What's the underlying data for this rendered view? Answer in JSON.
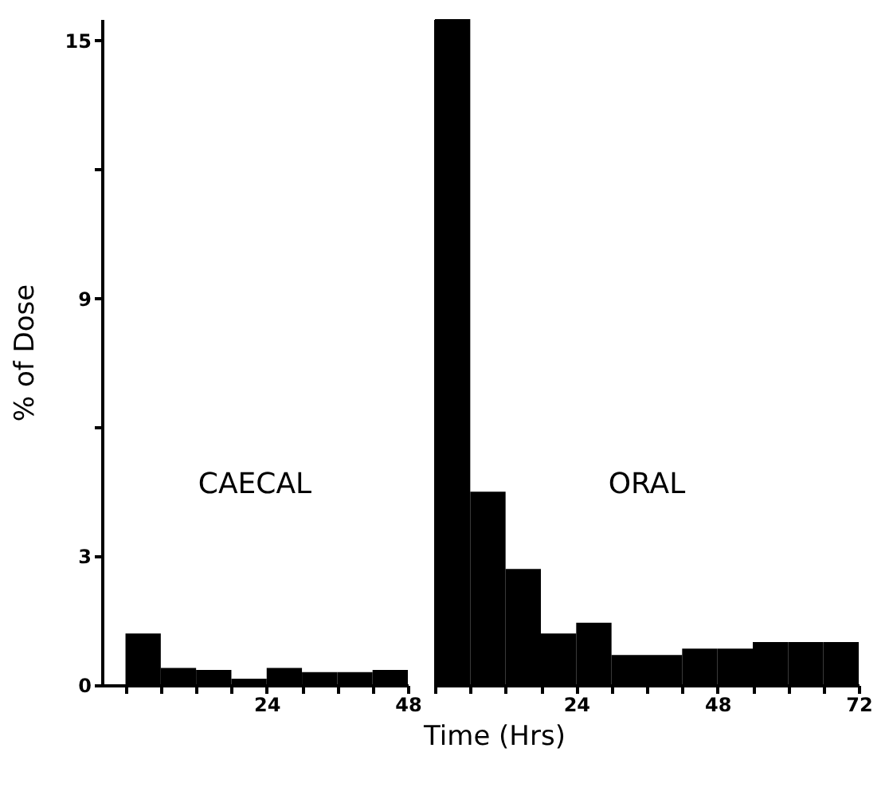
{
  "chart_data": [
    {
      "type": "histogram",
      "ylabel": "% of Dose",
      "color": "#000000",
      "bins": [
        0,
        6,
        12,
        18,
        24,
        30,
        36,
        42,
        48
      ],
      "values": [
        1.2,
        0.4,
        0.35,
        0.15,
        0.4,
        0.3,
        0.3,
        0.35
      ],
      "xlim": [
        -4,
        48
      ],
      "xticks": [
        {
          "value": 0,
          "label": null
        },
        {
          "value": 6,
          "label": null
        },
        {
          "value": 12,
          "label": null
        },
        {
          "value": 18,
          "label": null
        },
        24,
        {
          "value": 30,
          "label": null
        },
        {
          "value": 36,
          "label": null
        },
        {
          "value": 42,
          "label": null
        },
        48
      ],
      "ylim": [
        0,
        15.5
      ],
      "yticks": [
        0,
        3,
        {
          "value": 6,
          "label": null
        },
        9,
        {
          "value": 12,
          "label": null
        },
        15
      ],
      "annotations": [
        "CAECAL"
      ]
    },
    {
      "type": "histogram",
      "xlabel": "Time (Hrs)",
      "color": "#000000",
      "bins": [
        0,
        6,
        12,
        18,
        24,
        30,
        36,
        42,
        48,
        54,
        60,
        66,
        72
      ],
      "values": [
        15.5,
        4.5,
        2.7,
        1.2,
        1.45,
        0.7,
        0.7,
        0.85,
        0.85,
        1.0,
        1.0,
        1.0
      ],
      "xlim": [
        0,
        72
      ],
      "xticks": [
        {
          "value": 0,
          "label": null
        },
        {
          "value": 6,
          "label": null
        },
        {
          "value": 12,
          "label": null
        },
        {
          "value": 18,
          "label": null
        },
        24,
        {
          "value": 30,
          "label": null
        },
        {
          "value": 36,
          "label": null
        },
        {
          "value": 42,
          "label": null
        },
        48,
        {
          "value": 54,
          "label": null
        },
        {
          "value": 60,
          "label": null
        },
        {
          "value": 66,
          "label": null
        },
        72
      ],
      "ylim": [
        0,
        15.5
      ],
      "tick_labels": "x",
      "annotations": [
        "ORAL"
      ]
    }
  ]
}
